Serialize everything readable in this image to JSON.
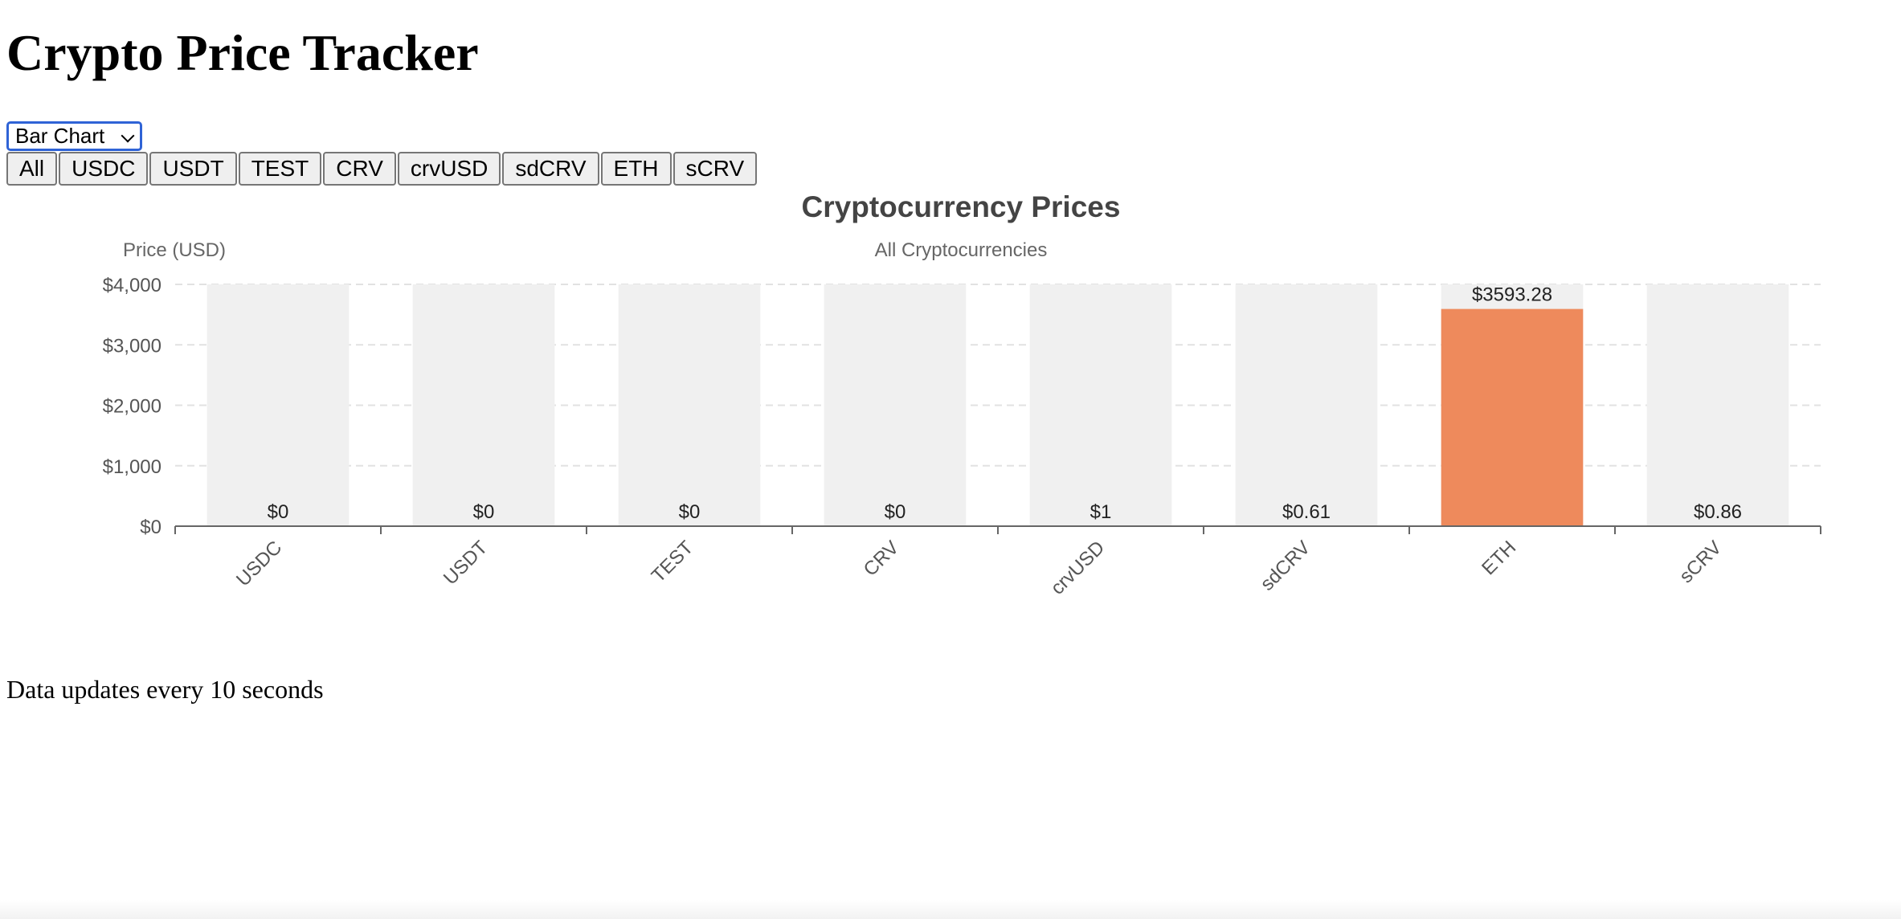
{
  "page": {
    "title": "Crypto Price Tracker",
    "footer": "Data updates every 10 seconds"
  },
  "controls": {
    "chart_type_selected": "Bar Chart",
    "filters": [
      {
        "label": "All"
      },
      {
        "label": "USDC"
      },
      {
        "label": "USDT"
      },
      {
        "label": "TEST"
      },
      {
        "label": "CRV"
      },
      {
        "label": "crvUSD"
      },
      {
        "label": "sdCRV"
      },
      {
        "label": "ETH"
      },
      {
        "label": "sCRV"
      }
    ]
  },
  "chart_data": {
    "type": "bar",
    "title": "Cryptocurrency Prices",
    "subtitle": "All Cryptocurrencies",
    "ylabel": "Price (USD)",
    "xlabel": "",
    "categories": [
      "USDC",
      "USDT",
      "TEST",
      "CRV",
      "crvUSD",
      "sdCRV",
      "ETH",
      "sCRV"
    ],
    "values": [
      0,
      0,
      0,
      0,
      1,
      0.61,
      3593.28,
      0.86
    ],
    "data_labels": [
      "$0",
      "$0",
      "$0",
      "$0",
      "$1",
      "$0.61",
      "$3593.28",
      "$0.86"
    ],
    "ylim": [
      0,
      4000
    ],
    "yticks": [
      0,
      1000,
      2000,
      3000,
      4000
    ],
    "ytick_labels": [
      "$0",
      "$1,000",
      "$2,000",
      "$3,000",
      "$4,000"
    ],
    "grid": true,
    "colors": {
      "bar": "#ee8a5c",
      "bar_background": "#f0f0f0",
      "grid": "#e2e2e2",
      "text": "#555555"
    }
  }
}
